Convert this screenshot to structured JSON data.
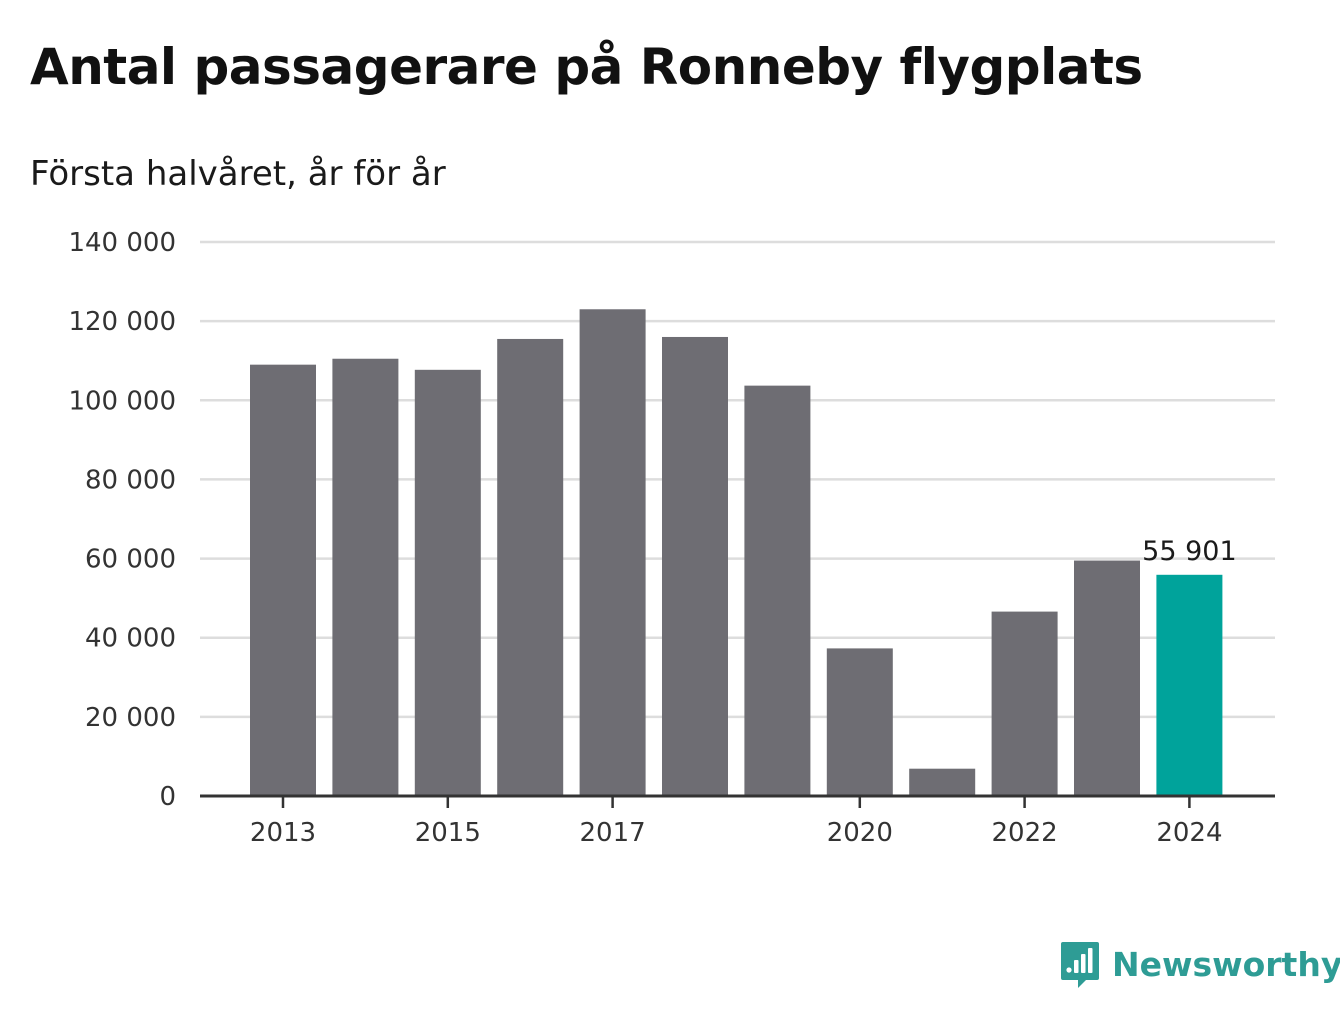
{
  "title": "Antal passagerare på Ronneby flygplats",
  "subtitle": "Första halvåret, år för år",
  "brand": {
    "name": "Newsworthy",
    "icon": "bar-chart-bubble-icon",
    "color": "#2e9c95"
  },
  "colors": {
    "bar": "#6e6d73",
    "highlight": "#00a39b",
    "grid": "#dddddd",
    "axis": "#333333"
  },
  "chart_data": {
    "type": "bar",
    "categories": [
      "2013",
      "2014",
      "2015",
      "2016",
      "2017",
      "2018",
      "2019",
      "2020",
      "2021",
      "2022",
      "2023",
      "2024"
    ],
    "values": [
      109000,
      110500,
      107700,
      115500,
      123000,
      116000,
      103700,
      37300,
      6900,
      46600,
      59500,
      55901
    ],
    "highlight_index": 11,
    "value_labels": {
      "11": "55 901"
    },
    "x_tick_labels": [
      "2013",
      "2015",
      "2017",
      "2020",
      "2022",
      "2024"
    ],
    "y_ticks": [
      0,
      20000,
      40000,
      60000,
      80000,
      100000,
      120000,
      140000
    ],
    "y_tick_labels": [
      "0",
      "20 000",
      "40 000",
      "60 000",
      "80 000",
      "100 000",
      "120 000",
      "140 000"
    ],
    "ylim": [
      0,
      140000
    ],
    "grid": true,
    "legend": "none",
    "title": "Antal passagerare på Ronneby flygplats",
    "subtitle": "Första halvåret, år för år",
    "xlabel": "",
    "ylabel": ""
  }
}
